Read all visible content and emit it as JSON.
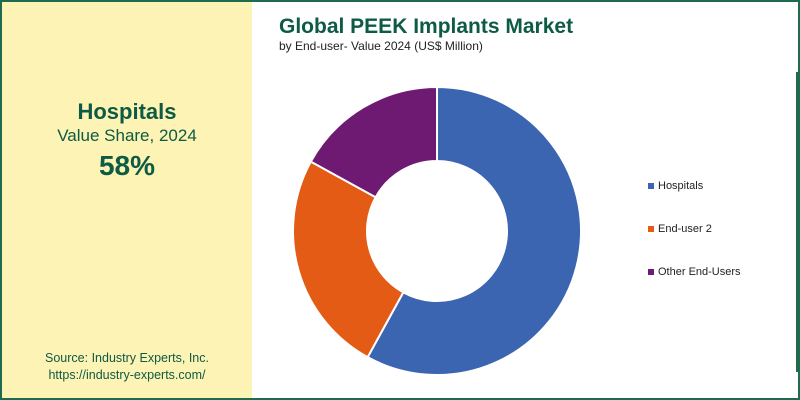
{
  "highlight": {
    "segment": "Hospitals",
    "label": "Value Share, 2024",
    "value": "58%"
  },
  "source": {
    "line1": "Source: Industry Experts, Inc.",
    "line2": "https://industry-experts.com/"
  },
  "chart_data": {
    "type": "pie",
    "title": "Global PEEK Implants Market",
    "subtitle": "by End-user- Value 2024 (US$ Million)",
    "categories": [
      "Hospitals",
      "End-user 2",
      "Other End-Users"
    ],
    "values": [
      58,
      25,
      17
    ],
    "colors": [
      "#3b65b1",
      "#e35b14",
      "#6e1a72"
    ],
    "legend_position": "right",
    "donut": true
  }
}
